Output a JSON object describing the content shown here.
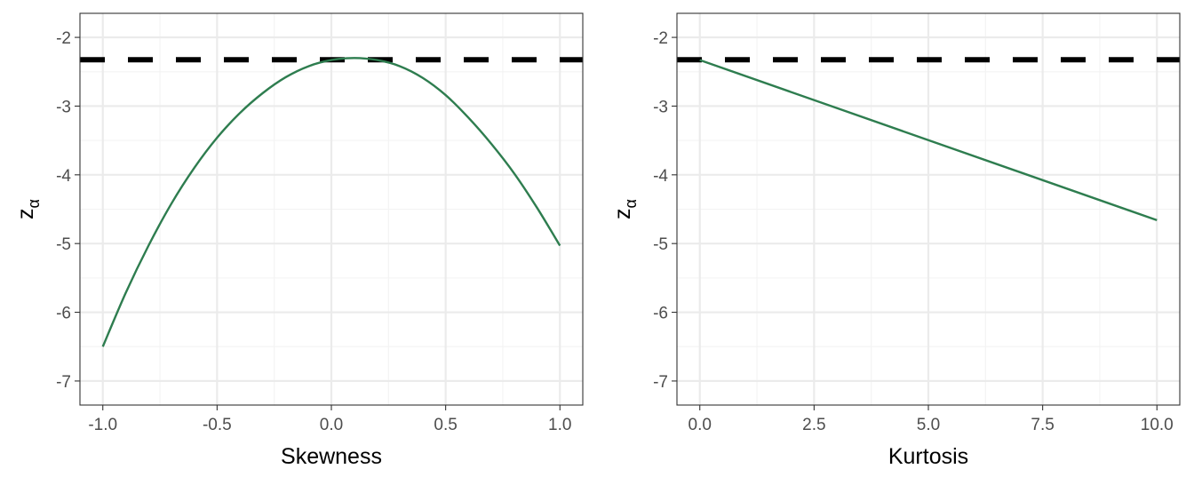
{
  "colors": {
    "series": "#2e7d4f",
    "reference": "#000000"
  },
  "chart_data": [
    {
      "type": "line",
      "title": "",
      "xlabel": "Skewness",
      "ylabel": "z",
      "ylabel_subscript": "α",
      "xlim": [
        -1.1,
        1.1
      ],
      "ylim": [
        -7.35,
        -1.65
      ],
      "x_ticks": [
        -1.0,
        -0.5,
        0.0,
        0.5,
        1.0
      ],
      "x_tick_labels": [
        "-1.0",
        "-0.5",
        "0.0",
        "0.5",
        "1.0"
      ],
      "y_ticks": [
        -2,
        -3,
        -4,
        -5,
        -6,
        -7
      ],
      "y_tick_labels": [
        "-2",
        "-3",
        "-4",
        "-5",
        "-6",
        "-7"
      ],
      "grid": true,
      "reference_line": {
        "y": -2.326,
        "style": "dashed"
      },
      "series": [
        {
          "x": [
            -1.0,
            -0.9,
            -0.8,
            -0.7,
            -0.6,
            -0.5,
            -0.4,
            -0.3,
            -0.2,
            -0.1,
            0.0,
            0.1,
            0.2,
            0.3,
            0.4,
            0.5,
            0.6,
            0.7,
            0.8,
            0.9,
            1.0
          ],
          "y": [
            -6.5,
            -5.72,
            -5.03,
            -4.42,
            -3.9,
            -3.46,
            -3.1,
            -2.81,
            -2.58,
            -2.42,
            -2.33,
            -2.3,
            -2.33,
            -2.42,
            -2.59,
            -2.84,
            -3.17,
            -3.55,
            -3.98,
            -4.48,
            -5.03
          ]
        }
      ]
    },
    {
      "type": "line",
      "title": "",
      "xlabel": "Kurtosis",
      "ylabel": "z",
      "ylabel_subscript": "α",
      "xlim": [
        -0.5,
        10.5
      ],
      "ylim": [
        -7.35,
        -1.65
      ],
      "x_ticks": [
        0,
        2.5,
        5,
        7.5,
        10
      ],
      "x_tick_labels": [
        "0.0",
        "2.5",
        "5.0",
        "7.5",
        "10.0"
      ],
      "y_ticks": [
        -2,
        -3,
        -4,
        -5,
        -6,
        -7
      ],
      "y_tick_labels": [
        "-2",
        "-3",
        "-4",
        "-5",
        "-6",
        "-7"
      ],
      "grid": true,
      "reference_line": {
        "y": -2.326,
        "style": "dashed"
      },
      "series": [
        {
          "x": [
            0,
            10
          ],
          "y": [
            -2.33,
            -4.66
          ]
        }
      ]
    }
  ]
}
